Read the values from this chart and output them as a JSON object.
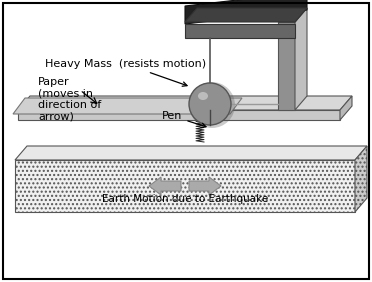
{
  "bg_color": "#ffffff",
  "border_color": "#000000",
  "label_heavy_mass": "Heavy Mass  (resists motion)",
  "label_paper": "Paper\n(moves in\ndirection of\narrow)",
  "label_pen": "Pen",
  "label_earth": "Earth Motion due to Earthquake",
  "text_color": "#000000",
  "font_size_label": 8,
  "font_size_earth": 7.5,
  "frame_front_color": "#777777",
  "frame_side_color": "#999999",
  "frame_top_color": "#333333",
  "post_front": "#888888",
  "post_side": "#aaaaaa",
  "post_dark": "#555555",
  "table_top_color": "#d8d8d8",
  "table_front_color": "#cccccc",
  "base_hatch_color": "#f0f0f0",
  "paper_color": "#cccccc",
  "ball_color": "#888888",
  "ball_light": "#cccccc",
  "zigzag_color": "#222222",
  "arrow_fill": "#aaaaaa",
  "arrow_edge": "#888888"
}
